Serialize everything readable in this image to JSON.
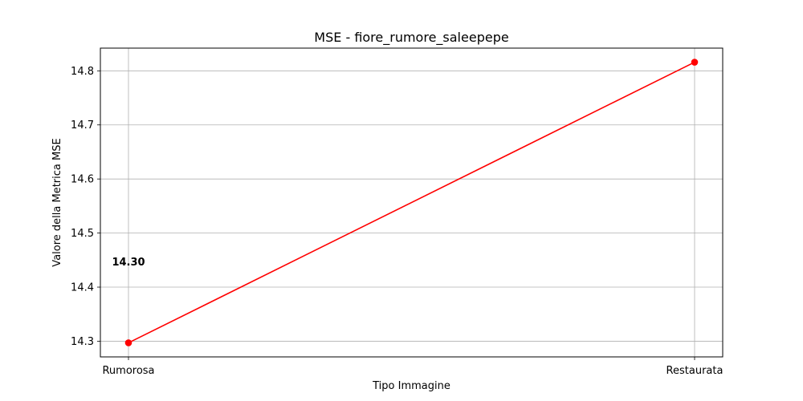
{
  "chart_data": {
    "type": "line",
    "title": "MSE - fiore_rumore_saleepepe",
    "xlabel": "Tipo Immagine",
    "ylabel": "Valore della Metrica MSE",
    "categories": [
      "Rumorosa",
      "Restaurata"
    ],
    "series": [
      {
        "values": [
          14.297,
          14.816
        ],
        "color": "#ff0000",
        "marker": "circle"
      }
    ],
    "y_ticks": [
      14.3,
      14.4,
      14.5,
      14.6,
      14.7,
      14.8
    ],
    "y_tick_labels": [
      "14.3",
      "14.4",
      "14.5",
      "14.6",
      "14.7",
      "14.8"
    ],
    "ylim": [
      14.271,
      14.842
    ],
    "grid": true,
    "annotations": [
      {
        "text": "14.30",
        "category": "Rumorosa",
        "y": 14.447
      }
    ]
  }
}
